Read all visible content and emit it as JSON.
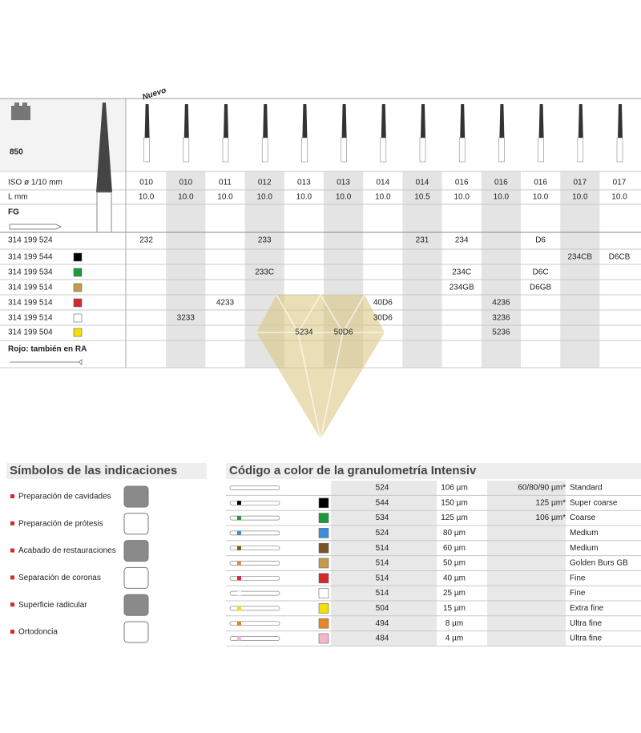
{
  "bur_table": {
    "model": "850",
    "new_label": "Nuevo",
    "iso_label": "ISO ø 1/10 mm",
    "length_label": "L mm",
    "shank_label": "FG",
    "iso": [
      "010",
      "010",
      "011",
      "012",
      "013",
      "013",
      "014",
      "014",
      "016",
      "016",
      "016",
      "017",
      "017"
    ],
    "length": [
      "10.0",
      "10.0",
      "10.0",
      "10.0",
      "10.0",
      "10.0",
      "10.0",
      "10.5",
      "10.0",
      "10.0",
      "10.0",
      "10.0",
      "10.0"
    ],
    "highlight_color": "#d7262e",
    "rows": [
      {
        "ref": "314 199 524",
        "swatch": null,
        "cells": [
          "232",
          null,
          null,
          "233",
          null,
          null,
          null,
          "231",
          "234",
          null,
          "D6",
          null,
          null
        ],
        "red_columns": [
          10
        ]
      },
      {
        "ref": "314 199 544",
        "swatch": "#000000",
        "cells": [
          null,
          null,
          null,
          null,
          null,
          null,
          null,
          null,
          null,
          null,
          null,
          "234CB",
          "D6CB"
        ],
        "red_columns": []
      },
      {
        "ref": "314 199 534",
        "swatch": "#1a9a3a",
        "cells": [
          null,
          null,
          null,
          "233C",
          null,
          null,
          null,
          null,
          "234C",
          null,
          "D6C",
          null,
          null
        ],
        "red_columns": []
      },
      {
        "ref": "314 199 514",
        "swatch": "#c49a4a",
        "cells": [
          null,
          null,
          null,
          null,
          null,
          null,
          null,
          null,
          "234GB",
          null,
          "D6GB",
          null,
          null
        ],
        "red_columns": []
      },
      {
        "ref": "314 199 514",
        "swatch": "#d7262e",
        "cells": [
          null,
          null,
          "4233",
          null,
          null,
          null,
          "40D6",
          null,
          null,
          "4236",
          null,
          null,
          null
        ],
        "red_columns": [
          9
        ]
      },
      {
        "ref": "314 199 514",
        "swatch": "#ffffff",
        "cells": [
          null,
          "3233",
          null,
          null,
          null,
          null,
          "30D6",
          null,
          null,
          "3236",
          null,
          null,
          null
        ],
        "red_columns": [
          9
        ]
      },
      {
        "ref": "314 199 504",
        "swatch": "#f2e000",
        "cells": [
          null,
          null,
          null,
          null,
          "5234",
          "50D6",
          null,
          null,
          null,
          "5236",
          null,
          null,
          null
        ],
        "red_columns": [
          9
        ]
      }
    ],
    "note": "Rojo: también en RA"
  },
  "indications": {
    "title": "Símbolos de las indicaciones",
    "items": [
      "Preparación de cavidades",
      "Preparación de prótesis",
      "Acabado de restauraciones",
      "Separación de coronas",
      "Superficie radicular",
      "Ortodoncia"
    ]
  },
  "grit_table": {
    "title": "Código a color de la granulometría Intensiv",
    "rows": [
      {
        "code": "524",
        "grit": "106 µm",
        "swatch": null,
        "note": "60/80/90 µm*",
        "name": "Standard"
      },
      {
        "code": "544",
        "grit": "150 µm",
        "swatch": "#000000",
        "note": "125 µm*",
        "name": "Super coarse"
      },
      {
        "code": "534",
        "grit": "125 µm",
        "swatch": "#1a9a3a",
        "note": "106 µm*",
        "name": "Coarse"
      },
      {
        "code": "524",
        "grit": "80 µm",
        "swatch": "#3a8fd8",
        "note": null,
        "name": "Medium"
      },
      {
        "code": "514",
        "grit": "60 µm",
        "swatch": "#7a5426",
        "note": null,
        "name": "Medium"
      },
      {
        "code": "514",
        "grit": "50 µm",
        "swatch": "#c49a4a",
        "note": null,
        "name": "Golden Burs GB"
      },
      {
        "code": "514",
        "grit": "40 µm",
        "swatch": "#d7262e",
        "note": null,
        "name": "Fine"
      },
      {
        "code": "514",
        "grit": "25 µm",
        "swatch": "#ffffff",
        "note": null,
        "name": "Fine"
      },
      {
        "code": "504",
        "grit": "15 µm",
        "swatch": "#f2e000",
        "note": null,
        "name": "Extra fine"
      },
      {
        "code": "494",
        "grit": "8 µm",
        "swatch": "#e8852a",
        "note": null,
        "name": "Ultra fine"
      },
      {
        "code": "484",
        "grit": "4 µm",
        "swatch": "#f4b8cc",
        "note": null,
        "name": "Ultra fine"
      }
    ]
  }
}
